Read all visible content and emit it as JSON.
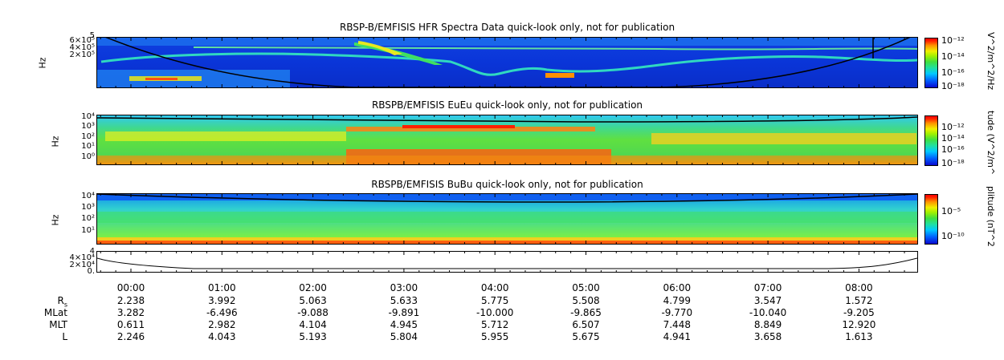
{
  "chart_data": [
    {
      "type": "heatmap",
      "title": "RBSP-B/EMFISIS  HFR Spectra Data quick-look only, not for publication",
      "ylabel": "Hz",
      "ytick_labels": [
        "6×10⁵",
        "4×10⁵",
        "2×10⁵"
      ],
      "ytick_top_label": "5",
      "colorbar_label": "V^2/m^2/Hz",
      "colorbar_ticks": [
        "10⁻¹²",
        "10⁻¹⁴",
        "10⁻¹⁶",
        "10⁻¹⁸"
      ]
    },
    {
      "type": "heatmap",
      "title": "RBSPB/EMFISIS  EuEu quick-look only, not for publication",
      "ylabel": "Hz",
      "ytick_labels": [
        "10⁴",
        "10³",
        "10²",
        "10¹",
        "10⁰"
      ],
      "colorbar_label": "tude (V^2/m^",
      "colorbar_ticks": [
        "10⁻¹²",
        "10⁻¹⁴",
        "10⁻¹⁶",
        "10⁻¹⁸"
      ]
    },
    {
      "type": "heatmap",
      "title": "RBSPB/EMFISIS  BuBu quick-look only, not for publication",
      "ylabel": "Hz",
      "ytick_labels": [
        "10⁴",
        "10³",
        "10²",
        "10¹"
      ],
      "colorbar_label": "plitude (nT^2",
      "colorbar_ticks": [
        "10⁻⁵",
        "10⁻¹⁰"
      ]
    },
    {
      "type": "line",
      "ytick_labels": [
        "4×10⁴",
        "2×10⁴",
        "0."
      ],
      "ytick_top_label": "4"
    }
  ],
  "ephemeris": {
    "times": [
      "00:00",
      "01:00",
      "02:00",
      "03:00",
      "04:00",
      "05:00",
      "06:00",
      "07:00",
      "08:00"
    ],
    "rows": [
      {
        "label": "R",
        "label_sub": "s",
        "values": [
          "2.238",
          "3.992",
          "5.063",
          "5.633",
          "5.775",
          "5.508",
          "4.799",
          "3.547",
          "1.572"
        ]
      },
      {
        "label": "MLat",
        "values": [
          "3.282",
          "-6.496",
          "-9.088",
          "-9.891",
          "-10.000",
          "-9.865",
          "-9.770",
          "-10.040",
          "-9.205"
        ]
      },
      {
        "label": "MLT",
        "values": [
          "0.611",
          "2.982",
          "4.104",
          "4.945",
          "5.712",
          "6.507",
          "7.448",
          "8.849",
          "12.920"
        ]
      },
      {
        "label": "L",
        "values": [
          "2.246",
          "4.043",
          "5.193",
          "5.804",
          "5.955",
          "5.675",
          "4.941",
          "3.658",
          "1.613"
        ]
      }
    ]
  }
}
